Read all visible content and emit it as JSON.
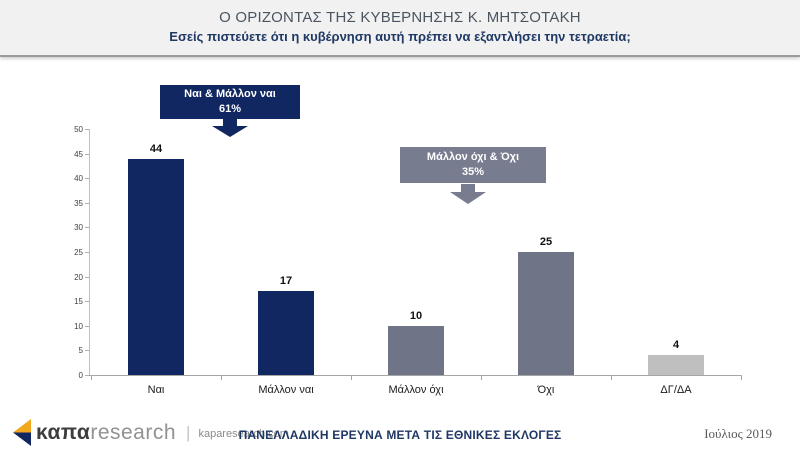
{
  "header": {
    "title": "Ο ΟΡΙΖΟΝΤΑΣ ΤΗΣ ΚΥΒΕΡΝΗΣΗΣ Κ. ΜΗΤΣΟΤΑΚΗ",
    "subtitle": "Εσείς πιστεύετε ότι η κυβέρνηση αυτή πρέπει να εξαντλήσει την τετραετία;"
  },
  "chart_data": {
    "type": "bar",
    "categories": [
      "Ναι",
      "Μάλλον ναι",
      "Μάλλον όχι",
      "Όχι",
      "ΔΓ/ΔΑ"
    ],
    "values": [
      44,
      17,
      10,
      25,
      4
    ],
    "bar_colors": [
      "#112761",
      "#112761",
      "#6F7487",
      "#6F7487",
      "#BFBFBF"
    ],
    "title": "",
    "xlabel": "",
    "ylabel": "",
    "ylim": [
      0,
      50
    ],
    "y_ticks": [
      0,
      5,
      10,
      15,
      20,
      25,
      30,
      35,
      40,
      45,
      50
    ],
    "grid": false,
    "value_labels_shown": true,
    "legend": "none"
  },
  "callouts": [
    {
      "label": "Ναι & Μάλλον ναι",
      "value": "61%",
      "color": "#112761"
    },
    {
      "label": "Μάλλον όχι & Όχι",
      "value": "35%",
      "color": "#777C8E"
    }
  ],
  "footer": {
    "logo_kapa": "καπα",
    "logo_research": "research",
    "logo_separator": "|",
    "logo_site": "kaparesearch.com",
    "center_text": "ΠΑΝΕΛΛΑΔΙΚΗ ΕΡΕΥΝΑ ΜΕΤΑ ΤΙΣ ΕΘΝΙΚΕΣ ΕΚΛΟΓΕΣ",
    "date": "Ιούλιος 2019"
  },
  "colors": {
    "navy": "#112761",
    "slate": "#6F7487",
    "light_gray": "#BFBFBF",
    "logo_orange": "#F2A81C",
    "subtitle_navy": "#1F3864"
  }
}
